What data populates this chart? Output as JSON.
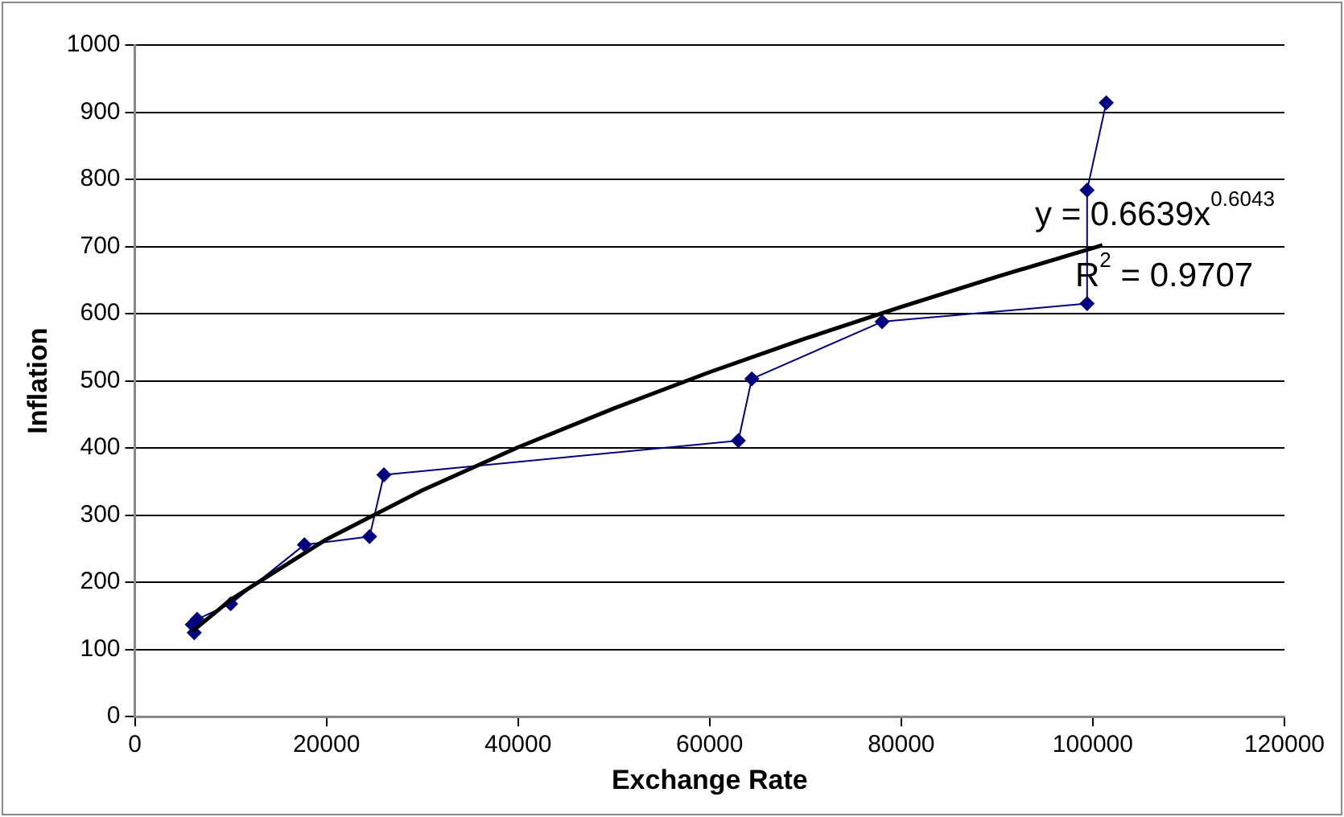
{
  "chart_data": {
    "type": "line",
    "xlabel": "Exchange Rate",
    "ylabel": "Inflation",
    "xlim": [
      0,
      120000
    ],
    "xticks": [
      0,
      20000,
      40000,
      60000,
      80000,
      100000,
      120000
    ],
    "ylim": [
      0,
      1000
    ],
    "yticks": [
      0,
      100,
      200,
      300,
      400,
      500,
      600,
      700,
      800,
      900,
      1000
    ],
    "grid": "y",
    "legend": false,
    "marker": "diamond",
    "line_style": "solid",
    "series": [
      {
        "color": "#000080",
        "x": [
          6200,
          6000,
          6500,
          10000,
          17700,
          24500,
          26000,
          63000,
          64400,
          78000,
          99400,
          99400,
          101400
        ],
        "values": [
          125,
          137,
          145,
          168,
          256,
          268,
          360,
          411,
          503,
          588,
          615,
          784,
          914
        ]
      },
      {
        "color": "#000000",
        "marker": "none",
        "x": [
          6000,
          10000,
          20000,
          30000,
          40000,
          50000,
          60000,
          70000,
          80000,
          90000,
          101000
        ],
        "values": [
          127,
          174,
          264,
          337,
          401,
          459,
          513,
          563,
          610,
          655,
          702
        ]
      }
    ],
    "annotations": [
      "y = 0.6639x$^{0.6043}$",
      "R$^{2}$ = 0.9707"
    ]
  }
}
